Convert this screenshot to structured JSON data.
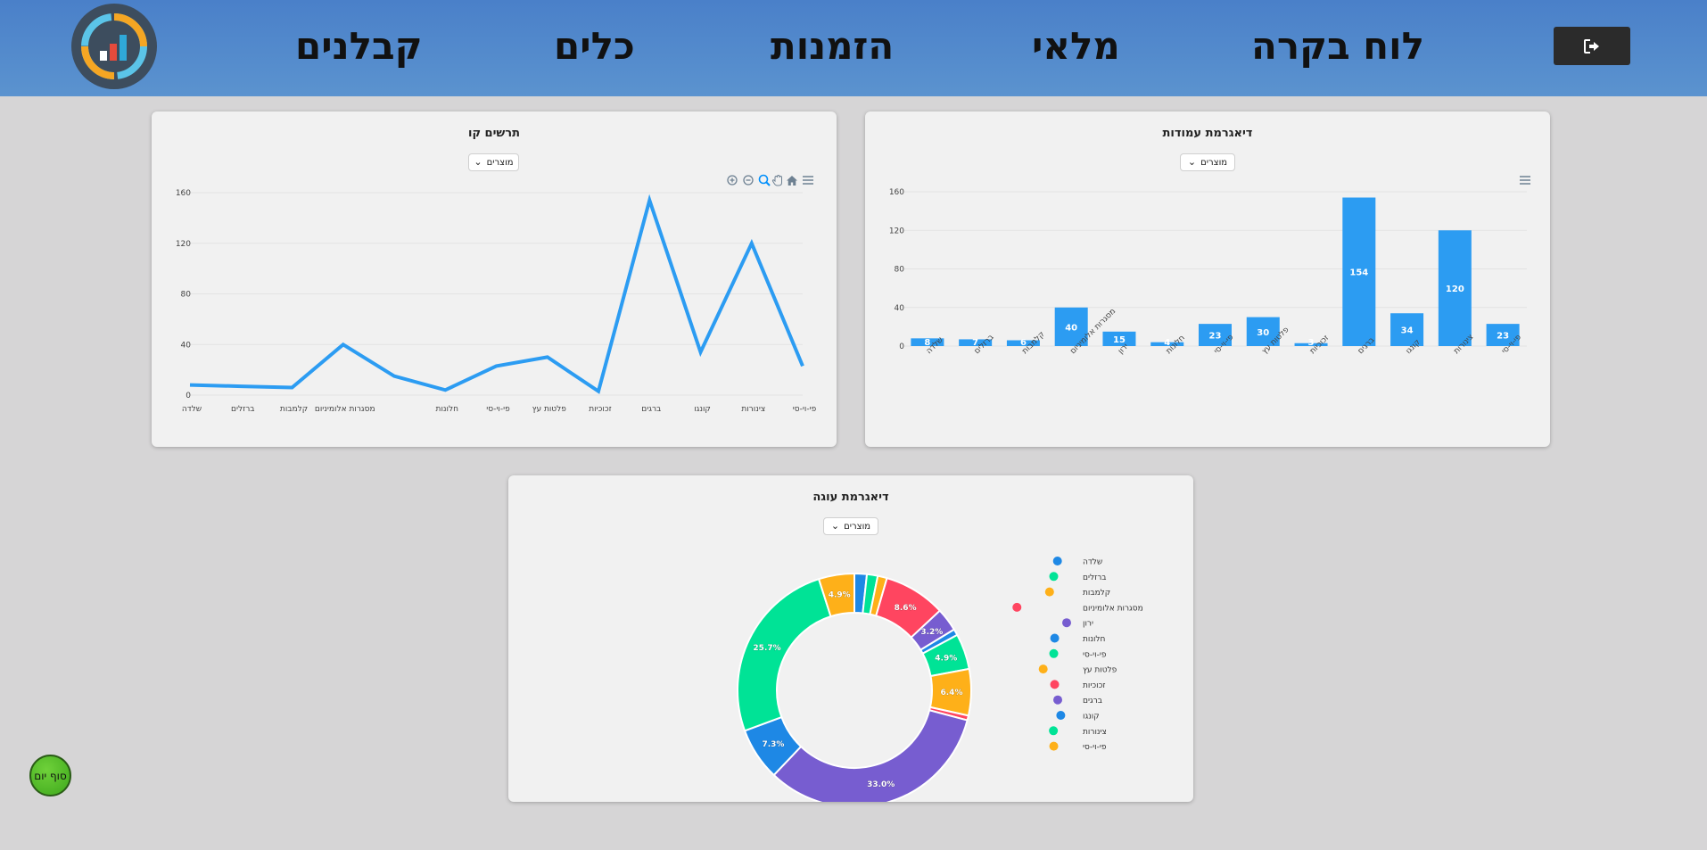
{
  "nav": {
    "items": [
      "לוח בקרה",
      "מלאי",
      "הזמנות",
      "כלים",
      "קבלנים"
    ],
    "logout_icon": "sign-out-icon"
  },
  "line_card": {
    "title": "תרשים קו",
    "select_value": "מוצרים",
    "toolbar_icons": [
      "zoom-in-icon",
      "zoom-out-icon",
      "selection-zoom-icon",
      "pan-icon",
      "home-icon",
      "menu-icon"
    ]
  },
  "bar_card": {
    "title": "דיאגרמת עמודות",
    "select_value": "מוצרים",
    "toolbar_icons": [
      "menu-icon"
    ]
  },
  "pie_card": {
    "title": "דיאגרמת עוגה",
    "select_value": "מוצרים"
  },
  "end_day_button": "סוף יום",
  "colors": {
    "primary": "#2c9cf2",
    "header": "#4a80c9",
    "donut": [
      "#1e88e5",
      "#00e396",
      "#feb019",
      "#ff4560",
      "#775dd0"
    ]
  },
  "chart_data": [
    {
      "type": "line",
      "title": "תרשים קו",
      "categories": [
        "שלדה",
        "ברזלים",
        "קלמבות",
        "מסגרות אלומיניום",
        "ירון",
        "חלונות",
        "פי-וי-סי",
        "פלטות עץ",
        "זכוכיות",
        "ברגים",
        "קונגו",
        "צינורות",
        "פי-וי-סי"
      ],
      "x_tick_labels": [
        "שלדה",
        "ברזלים",
        "קלמבות",
        "מסגרות אלומיניום",
        "",
        "חלונות",
        "פי-וי-סי",
        "פלטות עץ",
        "זכוכיות",
        "ברגים",
        "קונגו",
        "צינורות",
        "פי-וי-סי"
      ],
      "values": [
        8,
        7,
        6,
        40,
        15,
        4,
        23,
        30,
        3,
        154,
        34,
        120,
        23
      ],
      "ylim": [
        0,
        160
      ],
      "yticks": [
        0,
        40,
        80,
        120,
        160
      ],
      "color": "#2c9cf2"
    },
    {
      "type": "bar",
      "title": "דיאגרמת עמודות",
      "categories": [
        "שלדה",
        "ברזלים",
        "קלמבות",
        "מסגרות אלומיניום",
        "ירון",
        "חלונות",
        "פי-וי-סי",
        "פלטות עץ",
        "זכוכיות",
        "ברגים",
        "קונגו",
        "צינורות",
        "פי-וי-סי"
      ],
      "values": [
        8,
        7,
        6,
        40,
        15,
        4,
        23,
        30,
        3,
        154,
        34,
        120,
        23
      ],
      "data_labels": [
        "8",
        "7",
        "6",
        "40",
        "15",
        "4",
        "23",
        "30",
        "3",
        "154",
        "34",
        "120",
        "23"
      ],
      "ylim": [
        0,
        160
      ],
      "yticks": [
        0,
        40,
        80,
        120,
        160
      ],
      "color": "#2c9cf2"
    },
    {
      "type": "pie",
      "title": "דיאגרמת עוגה",
      "labels": [
        "שלדה",
        "ברזלים",
        "קלמבות",
        "מסגרות אלומיניום",
        "ירון",
        "חלונות",
        "פי-וי-סי",
        "פלטות עץ",
        "זכוכיות",
        "ברגים",
        "קונגו",
        "צינורות",
        "פי-וי-סי"
      ],
      "values": [
        8,
        7,
        6,
        40,
        15,
        4,
        23,
        30,
        3,
        154,
        34,
        120,
        23
      ],
      "percent_labels": [
        "",
        "",
        "",
        "8.6%",
        "3.2%",
        "",
        "4.9%",
        "6.4%",
        "",
        "33.0%",
        "7.3%",
        "25.7%",
        "4.9%"
      ],
      "colors": [
        "#1e88e5",
        "#00e396",
        "#feb019",
        "#ff4560",
        "#775dd0",
        "#1e88e5",
        "#00e396",
        "#feb019",
        "#ff4560",
        "#775dd0",
        "#1e88e5",
        "#00e396",
        "#feb019"
      ],
      "legend_position": "right"
    }
  ]
}
